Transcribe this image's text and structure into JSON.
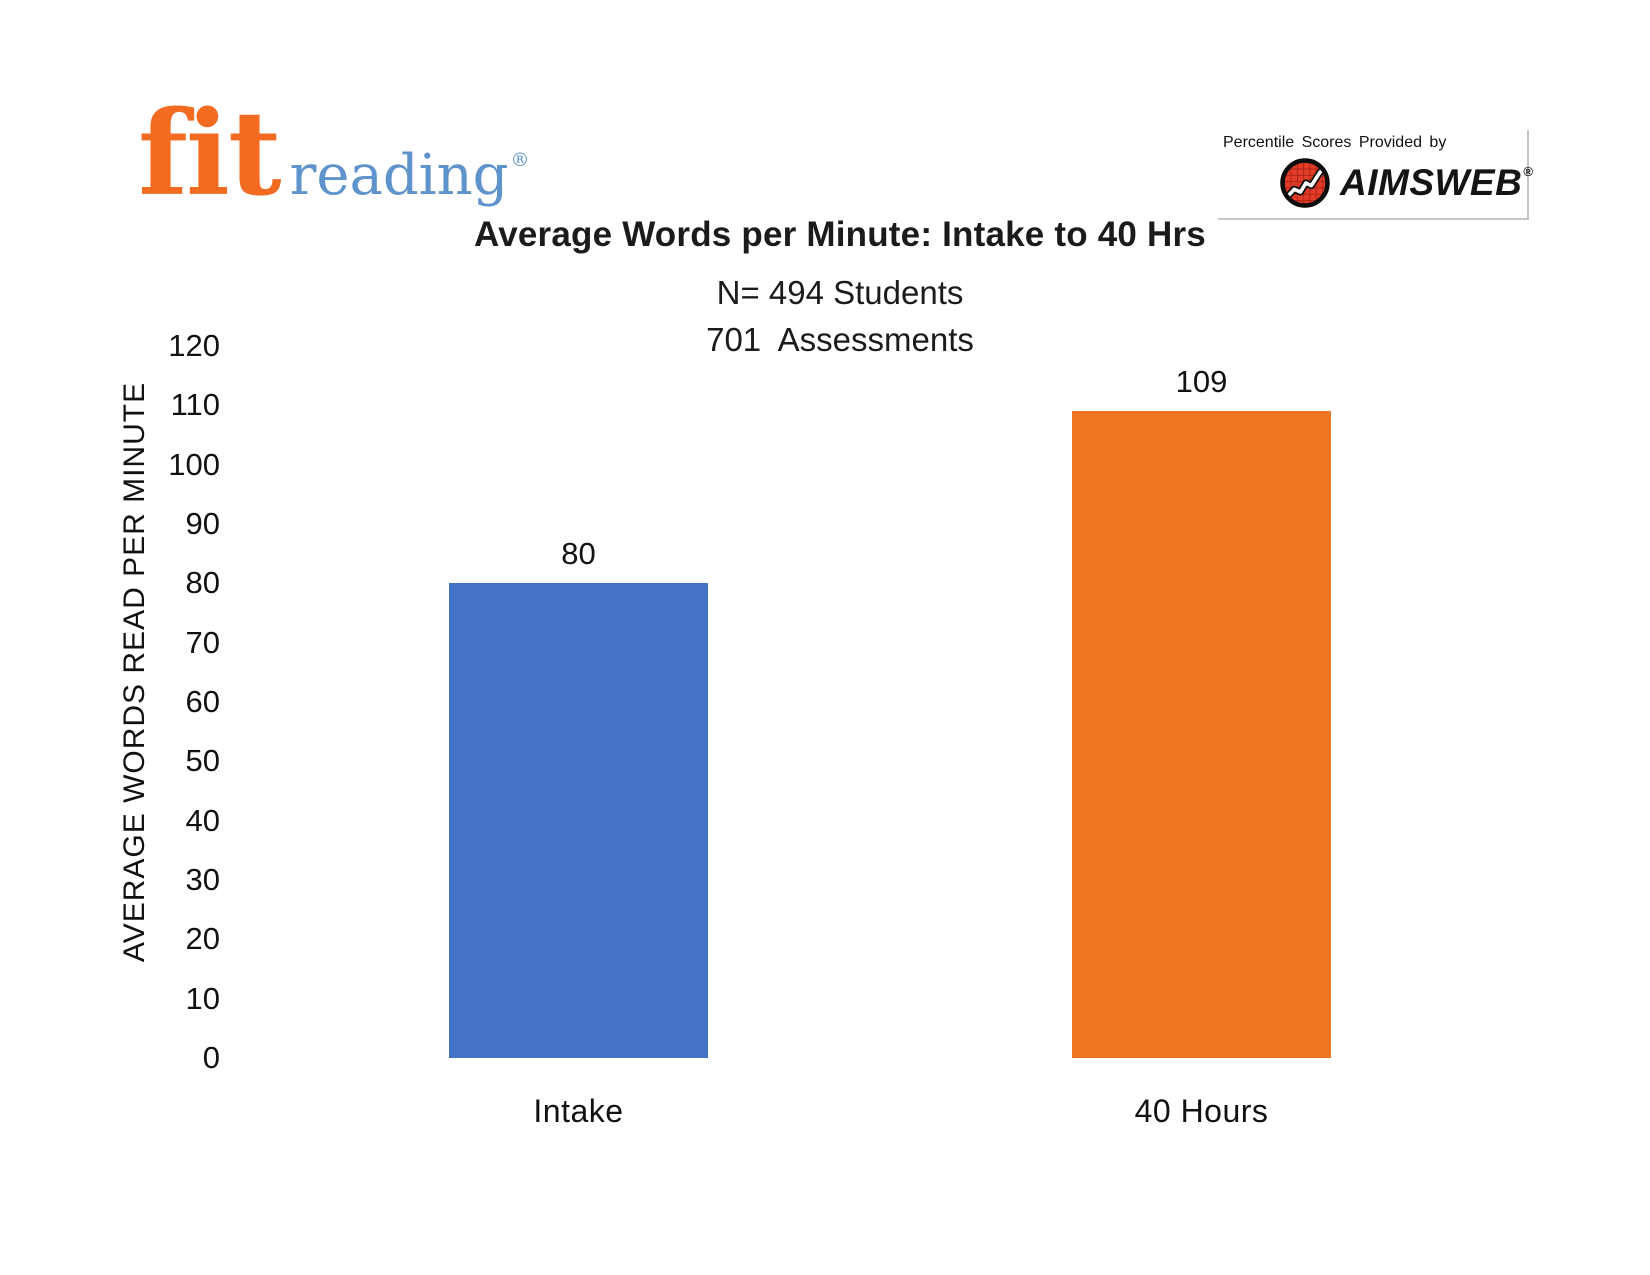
{
  "branding": {
    "fit_logo": {
      "fit": "fit",
      "reading": "reading",
      "registered": "®",
      "fit_color": "#F26B21",
      "reading_color": "#5E93CB"
    },
    "aimsweb": {
      "caption": "Percentile Scores Provided by",
      "name": "AIMSWEB",
      "registered": "®",
      "logo_red": "#E23B28"
    }
  },
  "chart_data": {
    "type": "bar",
    "title": "Average Words per Minute: Intake to 40 Hrs",
    "subtitle_lines": [
      "N= 494 Students",
      "701  Assessments"
    ],
    "categories": [
      "Intake",
      "40 Hours"
    ],
    "values": [
      80,
      109
    ],
    "data_labels": [
      "80",
      "109"
    ],
    "bar_colors": [
      "#4472C4",
      "#EE7623"
    ],
    "ylabel": "AVERAGE WORDS READ PER MINUTE",
    "xlabel": "",
    "ylim": [
      0,
      120
    ],
    "ytick_step": 10,
    "yticks": [
      0,
      10,
      20,
      30,
      40,
      50,
      60,
      70,
      80,
      90,
      100,
      110,
      120
    ],
    "grid": false,
    "legend": false,
    "axis_lines": false
  }
}
